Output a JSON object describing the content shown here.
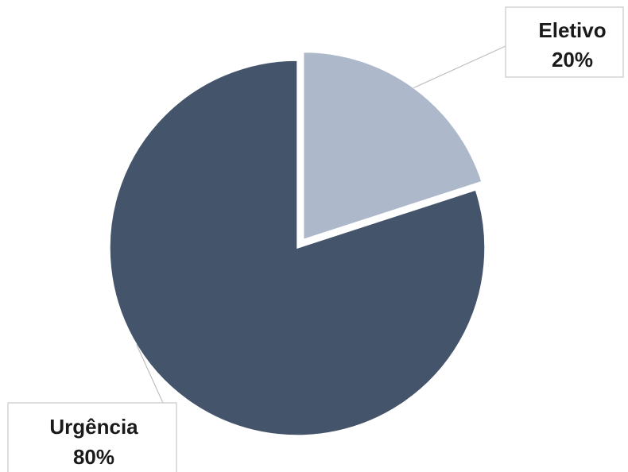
{
  "chart_data": {
    "type": "pie",
    "categories": [
      "Eletivo",
      "Urgência"
    ],
    "values": [
      20,
      80
    ],
    "labels": [
      {
        "category": "Eletivo",
        "percent": "20%"
      },
      {
        "category": "Urgência",
        "percent": "80%"
      }
    ],
    "colors": [
      "#adb9ca",
      "#44546a"
    ],
    "exploded": "Eletivo",
    "title": ""
  }
}
